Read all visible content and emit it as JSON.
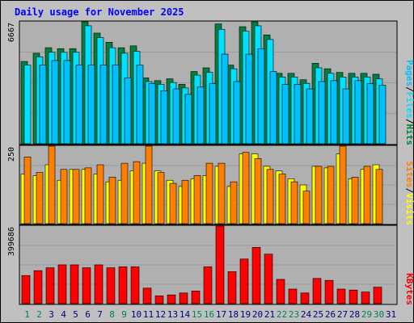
{
  "title": "Daily usage for November 2025",
  "colors": {
    "title": "#0000ff",
    "hits": "#008040",
    "files": "#00e0ff",
    "pages": "#00c0ff",
    "visits": "#ffff00",
    "sites": "#ff8000",
    "kbytes": "#ff0000",
    "panel_bg": "#b0b0b0",
    "frame_bg": "#c0c0c0",
    "weekend_day": "#00805c",
    "weekday": "#000080",
    "slash": "#000000"
  },
  "chart_data": [
    {
      "type": "bar",
      "name": "hits-files-pages",
      "max_label": "6667",
      "ylim": [
        0,
        6667
      ],
      "legend": {
        "pages": "Pages",
        "files": "Files",
        "hits": "Hits",
        "sep": "/"
      },
      "categories": [
        "1",
        "2",
        "3",
        "4",
        "5",
        "6",
        "7",
        "8",
        "9",
        "10",
        "11",
        "12",
        "13",
        "14",
        "15",
        "16",
        "17",
        "18",
        "19",
        "20",
        "21",
        "22",
        "23",
        "24",
        "25",
        "26",
        "27",
        "28",
        "29",
        "30",
        "31"
      ],
      "series": [
        {
          "key": "hits",
          "values": [
            4500,
            4950,
            5250,
            5200,
            5200,
            6700,
            6050,
            5550,
            5250,
            5350,
            3600,
            3450,
            3550,
            3250,
            3950,
            4150,
            6550,
            4300,
            6400,
            6750,
            5950,
            3850,
            3850,
            3500,
            4400,
            4100,
            3900,
            3850,
            3850,
            3800,
            0
          ]
        },
        {
          "key": "files",
          "values": [
            4300,
            4750,
            5000,
            5000,
            5000,
            6450,
            5800,
            5250,
            4950,
            5050,
            3400,
            3250,
            3350,
            3050,
            3750,
            3900,
            6250,
            4100,
            6150,
            6450,
            5700,
            3650,
            3650,
            3300,
            4150,
            3850,
            3650,
            3650,
            3650,
            3550,
            0
          ]
        },
        {
          "key": "pages",
          "values": [
            0,
            4300,
            4550,
            4550,
            4300,
            4300,
            4300,
            4300,
            3600,
            4300,
            3300,
            2900,
            3000,
            2700,
            3100,
            3300,
            4900,
            3400,
            4900,
            5200,
            3950,
            3250,
            3250,
            3000,
            3400,
            3450,
            3000,
            3450,
            3300,
            3200,
            0
          ]
        }
      ]
    },
    {
      "type": "bar",
      "name": "visits-sites",
      "max_label": "250",
      "ylim": [
        0,
        250
      ],
      "legend": {
        "sites": "Sites",
        "visits": "Visits",
        "sep": "/"
      },
      "categories": [
        "1",
        "2",
        "3",
        "4",
        "5",
        "6",
        "7",
        "8",
        "9",
        "10",
        "11",
        "12",
        "13",
        "14",
        "15",
        "16",
        "17",
        "18",
        "19",
        "20",
        "21",
        "22",
        "23",
        "24",
        "25",
        "26",
        "27",
        "28",
        "29",
        "30",
        "31"
      ],
      "series": [
        {
          "key": "visits",
          "values": [
            160,
            155,
            190,
            140,
            175,
            175,
            160,
            135,
            140,
            170,
            195,
            170,
            140,
            120,
            145,
            155,
            185,
            120,
            225,
            225,
            185,
            170,
            145,
            125,
            185,
            180,
            225,
            145,
            175,
            190,
            0
          ]
        },
        {
          "key": "sites",
          "values": [
            215,
            165,
            255,
            175,
            175,
            180,
            190,
            150,
            195,
            200,
            250,
            165,
            130,
            140,
            155,
            195,
            195,
            135,
            230,
            210,
            175,
            160,
            135,
            105,
            185,
            185,
            260,
            150,
            185,
            175,
            0
          ]
        }
      ]
    },
    {
      "type": "bar",
      "name": "kbytes",
      "max_label": "399686",
      "ylim": [
        0,
        399686
      ],
      "legend": {
        "kbytes": "KBytes"
      },
      "categories": [
        "1",
        "2",
        "3",
        "4",
        "5",
        "6",
        "7",
        "8",
        "9",
        "10",
        "11",
        "12",
        "13",
        "14",
        "15",
        "16",
        "17",
        "18",
        "19",
        "20",
        "21",
        "22",
        "23",
        "24",
        "25",
        "26",
        "27",
        "28",
        "29",
        "30",
        "31"
      ],
      "series": [
        {
          "key": "kbytes",
          "values": [
            145000,
            170000,
            185000,
            200000,
            200000,
            185000,
            200000,
            185000,
            190000,
            190000,
            80000,
            40000,
            45000,
            55000,
            65000,
            190000,
            400000,
            165000,
            230000,
            290000,
            255000,
            125000,
            75000,
            55000,
            130000,
            120000,
            75000,
            70000,
            60000,
            85000,
            0
          ]
        }
      ]
    }
  ],
  "x_axis": {
    "labels": [
      "1",
      "2",
      "3",
      "4",
      "5",
      "6",
      "7",
      "8",
      "9",
      "10",
      "11",
      "12",
      "13",
      "14",
      "15",
      "16",
      "17",
      "18",
      "19",
      "20",
      "21",
      "22",
      "23",
      "24",
      "25",
      "26",
      "27",
      "28",
      "29",
      "30",
      "31"
    ],
    "weekend": [
      1,
      2,
      8,
      9,
      15,
      16,
      22,
      23,
      29,
      30
    ]
  }
}
